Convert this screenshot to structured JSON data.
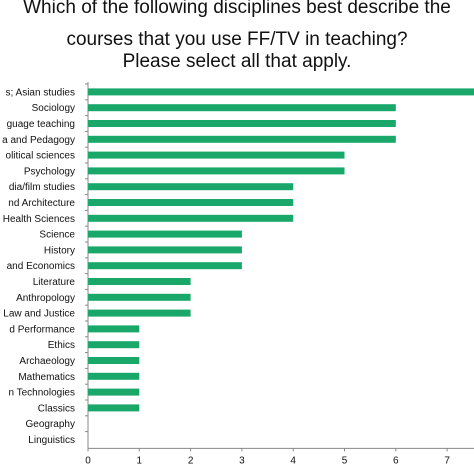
{
  "chart_data": {
    "type": "bar",
    "orientation": "horizontal",
    "title_lines": [
      "Which of the following disciplines best describe the",
      "courses that you use FF/TV in teaching?",
      "Please select all that apply."
    ],
    "categories": [
      "s; Asian studies",
      "Sociology",
      "guage teaching",
      "a and Pedagogy",
      "olitical sciences",
      "Psychology",
      "dia/film studies",
      "nd Architecture",
      "Health Sciences",
      "Science",
      "History",
      "and Economics",
      "Literature",
      "Anthropology",
      "Law and Justice",
      "d Performance",
      "Ethics",
      "Archaeology",
      "Mathematics",
      "n Technologies",
      "Classics",
      "Geography",
      "Linguistics"
    ],
    "values": [
      8,
      6,
      6,
      6,
      5,
      5,
      4,
      4,
      4,
      3,
      3,
      3,
      2,
      2,
      2,
      1,
      1,
      1,
      1,
      1,
      1,
      0,
      0
    ],
    "x_ticks": [
      "0",
      "1",
      "2",
      "3",
      "4",
      "5",
      "6",
      "7"
    ],
    "xlim": [
      0,
      7.7
    ],
    "bar_color": "#1aa86a",
    "grid": false,
    "legend": "none"
  }
}
